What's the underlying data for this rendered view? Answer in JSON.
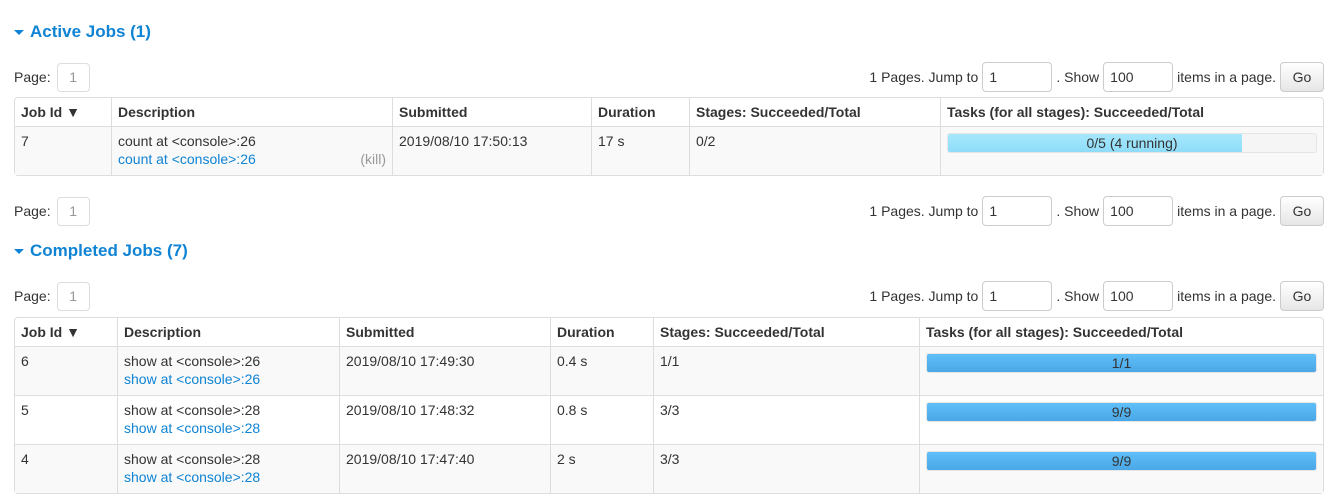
{
  "active": {
    "title": "Active Jobs (1)",
    "pager": {
      "page_label": "Page:",
      "page": "1",
      "pages_text": "1 Pages. Jump to",
      "jump": "1",
      "show_text": ". Show",
      "show": "100",
      "items_text": "items in a page.",
      "go": "Go"
    },
    "columns": [
      "Job Id ▼",
      "Description",
      "Submitted",
      "Duration",
      "Stages: Succeeded/Total",
      "Tasks (for all stages): Succeeded/Total"
    ],
    "rows": [
      {
        "id": "7",
        "desc": "count at <console>:26",
        "link": "count at <console>:26",
        "kill": "(kill)",
        "submitted": "2019/08/10 17:50:13",
        "duration": "17 s",
        "stages": "0/2",
        "tasks": "0/5 (4 running)",
        "succeeded": 0,
        "running": 4,
        "total": 5
      }
    ]
  },
  "completed": {
    "title": "Completed Jobs (7)",
    "pager": {
      "page_label": "Page:",
      "page": "1",
      "pages_text": "1 Pages. Jump to",
      "jump": "1",
      "show_text": ". Show",
      "show": "100",
      "items_text": "items in a page.",
      "go": "Go"
    },
    "columns": [
      "Job Id ▼",
      "Description",
      "Submitted",
      "Duration",
      "Stages: Succeeded/Total",
      "Tasks (for all stages): Succeeded/Total"
    ],
    "rows": [
      {
        "id": "6",
        "desc": "show at <console>:26",
        "link": "show at <console>:26",
        "submitted": "2019/08/10 17:49:30",
        "duration": "0.4 s",
        "stages": "1/1",
        "tasks": "1/1",
        "succeeded": 1,
        "total": 1
      },
      {
        "id": "5",
        "desc": "show at <console>:28",
        "link": "show at <console>:28",
        "submitted": "2019/08/10 17:48:32",
        "duration": "0.8 s",
        "stages": "3/3",
        "tasks": "9/9",
        "succeeded": 9,
        "total": 9
      },
      {
        "id": "4",
        "desc": "show at <console>:28",
        "link": "show at <console>:28",
        "submitted": "2019/08/10 17:47:40",
        "duration": "2 s",
        "stages": "3/3",
        "tasks": "9/9",
        "succeeded": 9,
        "total": 9
      }
    ]
  },
  "bottom_pager": {
    "page_label": "Page:",
    "page": "1",
    "pages_text": "1 Pages. Jump to",
    "jump": "1",
    "show_text": ". Show",
    "show": "100",
    "items_text": "items in a page.",
    "go": "Go"
  },
  "colors": {
    "accent": "#0f83d4",
    "bar_done": "#5fbff9",
    "bar_running": "#a6e8fc"
  }
}
